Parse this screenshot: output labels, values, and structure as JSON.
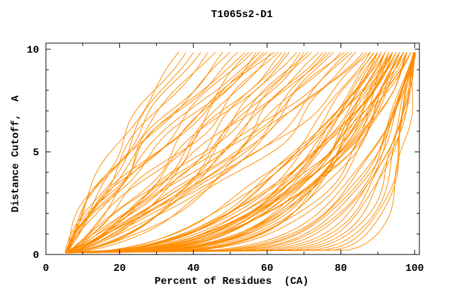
{
  "chart_data": {
    "type": "line",
    "title": "T1065s2-D1",
    "xlabel": "Percent of Residues  (CA)",
    "ylabel": "Distance Cutoff,  A",
    "xlim": [
      0,
      101.3
    ],
    "ylim": [
      0,
      10.3
    ],
    "x_major_ticks": [
      0,
      20,
      40,
      60,
      80,
      100
    ],
    "x_minor_ticks": [
      10,
      30,
      50,
      70,
      90
    ],
    "y_major_ticks": [
      0,
      5,
      10
    ],
    "y_minor_ticks": [
      1,
      2,
      3,
      4,
      6,
      7,
      8,
      9
    ],
    "grid": false,
    "legend": "none",
    "line_color": "#ff8c00",
    "axis_color": "#000000",
    "background": "#ffffff",
    "n_curves": 92,
    "y_start": 0.08,
    "y_end": 9.85,
    "curve_model": "each curve = [x0, x_top, p, wiggle_amp, wiggle_phase, wiggle_freq]; x(t) = x0 + (x_top-x0)*t^p + wiggle, t = (y-y_start)/(y_end-y_start)",
    "curves": [
      [
        5.5,
        36,
        1.25,
        2.0,
        0.1,
        1.6
      ],
      [
        5.8,
        38,
        1.35,
        2.5,
        0.45,
        1.8
      ],
      [
        5.2,
        40,
        1.15,
        3.0,
        0.7,
        1.4
      ],
      [
        6.0,
        42,
        1.3,
        2.2,
        0.2,
        2.0
      ],
      [
        5.5,
        44,
        1.2,
        2.8,
        0.85,
        1.5
      ],
      [
        6.2,
        46,
        1.4,
        2.0,
        0.35,
        1.7
      ],
      [
        5.4,
        48,
        1.1,
        3.2,
        0.6,
        1.9
      ],
      [
        5.9,
        50,
        1.3,
        2.4,
        0.15,
        1.5
      ],
      [
        5.3,
        52,
        1.2,
        2.9,
        0.5,
        2.1
      ],
      [
        6.1,
        54,
        1.35,
        2.1,
        0.75,
        1.6
      ],
      [
        5.6,
        56,
        1.15,
        3.0,
        0.3,
        1.8
      ],
      [
        5.8,
        58,
        1.25,
        2.6,
        0.9,
        1.4
      ],
      [
        5.4,
        60,
        1.2,
        2.3,
        0.55,
        2.0
      ],
      [
        6.0,
        62,
        1.3,
        2.7,
        0.25,
        1.7
      ],
      [
        5.5,
        55,
        0.95,
        3.5,
        0.2,
        1.5
      ],
      [
        5.8,
        57,
        0.85,
        3.0,
        0.6,
        1.8
      ],
      [
        5.3,
        59,
        0.9,
        3.8,
        0.4,
        1.6
      ],
      [
        6.0,
        61,
        0.8,
        3.2,
        0.8,
        1.4
      ],
      [
        5.6,
        63,
        0.95,
        3.6,
        0.1,
        1.9
      ],
      [
        5.9,
        65,
        0.75,
        3.1,
        0.5,
        1.7
      ],
      [
        5.4,
        66,
        0.9,
        3.9,
        0.9,
        1.5
      ],
      [
        6.1,
        68,
        0.8,
        3.3,
        0.3,
        1.8
      ],
      [
        5.5,
        69,
        0.7,
        3.7,
        0.65,
        1.6
      ],
      [
        5.8,
        71,
        0.85,
        3.0,
        0.05,
        2.0
      ],
      [
        5.3,
        72,
        0.75,
        4.0,
        0.45,
        1.5
      ],
      [
        6.0,
        74,
        0.9,
        3.4,
        0.85,
        1.7
      ],
      [
        5.6,
        75,
        0.7,
        3.8,
        0.25,
        1.9
      ],
      [
        5.9,
        77,
        0.8,
        3.2,
        0.7,
        1.4
      ],
      [
        5.4,
        78,
        0.65,
        3.6,
        0.15,
        1.8
      ],
      [
        6.2,
        80,
        0.75,
        3.0,
        0.55,
        1.6
      ],
      [
        5.5,
        81,
        0.85,
        3.5,
        0.95,
        2.0
      ],
      [
        5.7,
        83,
        0.65,
        3.9,
        0.35,
        1.5
      ],
      [
        5.3,
        84,
        0.7,
        3.3,
        0.75,
        1.7
      ],
      [
        6.0,
        86,
        0.6,
        3.7,
        0.2,
        1.9
      ],
      [
        5.6,
        87,
        0.75,
        3.1,
        0.6,
        1.6
      ],
      [
        5.8,
        88,
        0.65,
        3.5,
        0.0,
        1.8
      ],
      [
        5.4,
        64,
        0.85,
        3.2,
        0.4,
        2.1
      ],
      [
        6.1,
        70,
        0.7,
        3.6,
        0.8,
        1.5
      ],
      [
        5.5,
        76,
        0.6,
        3.0,
        0.3,
        1.7
      ],
      [
        5.9,
        82,
        0.8,
        3.4,
        0.68,
        1.9
      ],
      [
        5.5,
        89,
        0.42,
        2.0,
        0.1,
        1.6
      ],
      [
        5.8,
        90,
        0.35,
        1.8,
        0.5,
        1.8
      ],
      [
        5.3,
        91,
        0.4,
        2.2,
        0.9,
        1.4
      ],
      [
        6.0,
        92,
        0.3,
        1.6,
        0.3,
        1.7
      ],
      [
        5.6,
        93,
        0.38,
        2.4,
        0.7,
        1.5
      ],
      [
        5.9,
        94,
        0.28,
        1.9,
        0.15,
        1.9
      ],
      [
        5.4,
        95,
        0.35,
        2.1,
        0.55,
        1.6
      ],
      [
        6.1,
        96,
        0.25,
        1.7,
        0.95,
        1.8
      ],
      [
        5.5,
        97,
        0.32,
        2.3,
        0.35,
        1.5
      ],
      [
        5.8,
        98,
        0.22,
        1.5,
        0.75,
        1.7
      ],
      [
        5.3,
        99,
        0.3,
        2.0,
        0.2,
        1.9
      ],
      [
        6.0,
        88,
        0.44,
        2.2,
        0.6,
        1.5
      ],
      [
        5.6,
        90,
        0.33,
        1.8,
        0.05,
        1.8
      ],
      [
        5.9,
        92,
        0.4,
        2.1,
        0.45,
        1.6
      ],
      [
        5.4,
        94,
        0.26,
        1.6,
        0.85,
        1.4
      ],
      [
        6.2,
        96,
        0.36,
        2.3,
        0.25,
        1.7
      ],
      [
        5.5,
        98,
        0.24,
        1.9,
        0.65,
        1.9
      ],
      [
        5.7,
        91,
        0.42,
        2.0,
        0.08,
        1.5
      ],
      [
        5.3,
        93,
        0.31,
        2.2,
        0.48,
        1.8
      ],
      [
        6.0,
        95,
        0.38,
        1.7,
        0.88,
        1.6
      ],
      [
        5.6,
        97,
        0.27,
        2.1,
        0.28,
        1.4
      ],
      [
        5.8,
        99,
        0.34,
        1.8,
        0.68,
        1.7
      ],
      [
        5.4,
        89,
        0.45,
        2.3,
        0.18,
        1.9
      ],
      [
        6.1,
        92,
        0.29,
        1.6,
        0.58,
        1.5
      ],
      [
        5.5,
        94,
        0.37,
        2.0,
        0.98,
        1.8
      ],
      [
        5.9,
        96,
        0.23,
        1.9,
        0.38,
        1.6
      ],
      [
        5.3,
        98,
        0.33,
        2.2,
        0.78,
        1.4
      ],
      [
        6.0,
        90,
        0.41,
        1.7,
        0.12,
        1.7
      ],
      [
        5.6,
        93,
        0.25,
        2.1,
        0.52,
        1.9
      ],
      [
        5.8,
        95,
        0.36,
        1.8,
        0.92,
        1.5
      ],
      [
        5.4,
        97,
        0.28,
        2.3,
        0.32,
        1.8
      ],
      [
        6.2,
        99,
        0.39,
        1.6,
        0.72,
        1.6
      ],
      [
        5.5,
        92,
        0.21,
        2.0,
        0.22,
        1.4
      ],
      [
        5.7,
        94,
        0.43,
        2.2,
        0.62,
        1.7
      ],
      [
        5.3,
        96,
        0.26,
        1.8,
        0.02,
        1.9
      ],
      [
        5.9,
        98,
        0.35,
        2.1,
        0.42,
        1.5
      ],
      [
        5.5,
        100.2,
        0.1,
        1.2,
        0.15,
        1.6
      ],
      [
        5.8,
        99.8,
        0.14,
        1.0,
        0.55,
        1.8
      ],
      [
        5.3,
        100.0,
        0.08,
        1.4,
        0.95,
        1.4
      ],
      [
        6.0,
        100.3,
        0.18,
        1.1,
        0.35,
        1.7
      ],
      [
        5.6,
        99.6,
        0.06,
        1.3,
        0.75,
        1.5
      ],
      [
        5.9,
        100.1,
        0.12,
        1.0,
        0.05,
        1.9
      ],
      [
        5.4,
        100.4,
        0.16,
        1.2,
        0.45,
        1.6
      ],
      [
        6.1,
        99.9,
        0.09,
        1.4,
        0.85,
        1.8
      ],
      [
        5.5,
        100.2,
        0.2,
        1.1,
        0.25,
        1.5
      ],
      [
        5.8,
        100.0,
        0.07,
        1.3,
        0.65,
        1.7
      ],
      [
        5.3,
        100.3,
        0.13,
        1.0,
        0.18,
        1.9
      ],
      [
        6.0,
        99.7,
        0.17,
        1.2,
        0.58,
        1.5
      ],
      [
        5.6,
        100.1,
        0.05,
        1.4,
        0.98,
        1.8
      ],
      [
        5.9,
        100.4,
        0.11,
        1.1,
        0.38,
        1.6
      ],
      [
        5.4,
        99.8,
        0.15,
        1.3,
        0.78,
        1.4
      ],
      [
        6.2,
        100.2,
        0.19,
        1.0,
        0.08,
        1.7
      ]
    ]
  }
}
